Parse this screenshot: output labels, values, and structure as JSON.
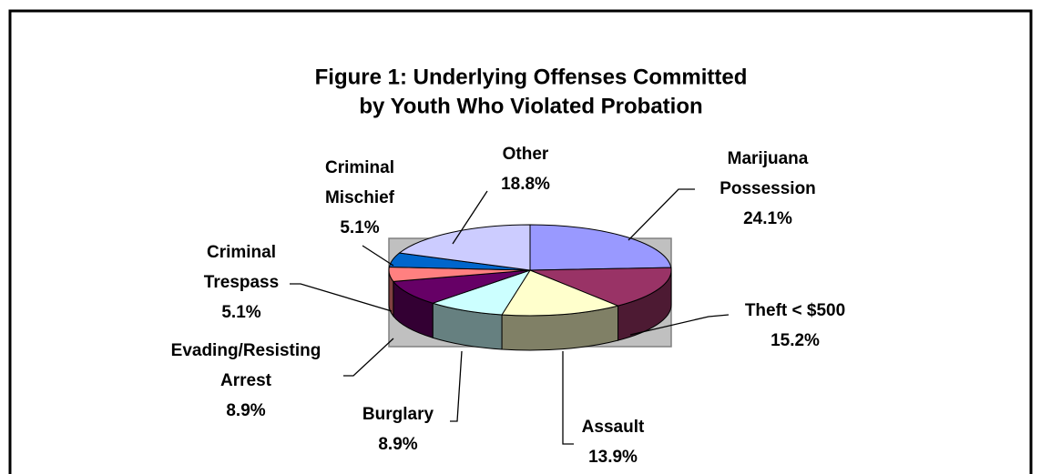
{
  "chart_data": {
    "type": "pie3d",
    "title": [
      "Figure 1:  Underlying Offenses Committed",
      "by Youth Who Violated Probation"
    ],
    "categories": [
      [
        "Marijuana",
        "Possession"
      ],
      [
        "Theft < $500"
      ],
      [
        "Assault"
      ],
      [
        "Burglary"
      ],
      [
        "Evading/Resisting",
        "Arrest"
      ],
      [
        "Criminal",
        "Trespass"
      ],
      [
        "Criminal",
        "Mischief"
      ],
      [
        "Other"
      ]
    ],
    "values": [
      24.1,
      15.2,
      13.9,
      8.9,
      8.9,
      5.1,
      5.1,
      18.8
    ],
    "value_labels": [
      "24.1%",
      "15.2%",
      "13.9%",
      "8.9%",
      "8.9%",
      "5.1%",
      "5.1%",
      "18.8%"
    ],
    "colors": [
      "#9999ff",
      "#993366",
      "#ffffcc",
      "#ccffff",
      "#660066",
      "#ff8080",
      "#0066cc",
      "#ccccff"
    ]
  }
}
